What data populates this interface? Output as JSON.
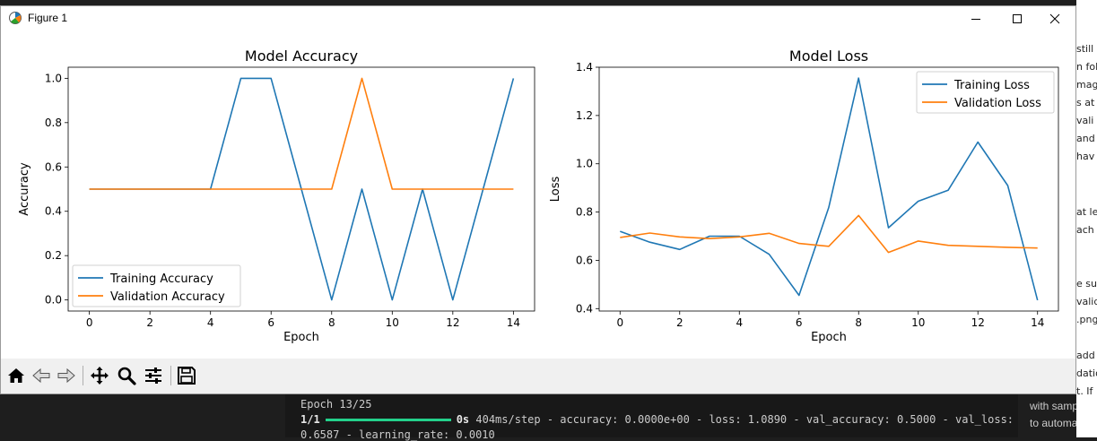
{
  "window": {
    "title": "Figure 1",
    "controls": [
      "minimize",
      "maximize",
      "close"
    ]
  },
  "toolbar": {
    "buttons": [
      {
        "name": "home-icon",
        "label": "Home"
      },
      {
        "name": "back-icon",
        "label": "Back"
      },
      {
        "name": "forward-icon",
        "label": "Forward"
      },
      {
        "name": "pan-icon",
        "label": "Pan"
      },
      {
        "name": "zoom-icon",
        "label": "Zoom"
      },
      {
        "name": "configure-subplots-icon",
        "label": "Configure subplots"
      },
      {
        "name": "save-icon",
        "label": "Save"
      }
    ]
  },
  "terminal": {
    "epoch_line": "Epoch 13/25",
    "step_label": "1/1",
    "progress": 1.0,
    "progress_color": "#23d18b",
    "time": "0s",
    "metrics": "404ms/step - accuracy: 0.0000e+00 - loss: 1.0890 - val_accuracy: 0.5000 - val_loss:",
    "metrics_cont": " 0.6587 - learning_rate: 0.0010"
  },
  "side_panel": {
    "lines": [
      "with sample i",
      "to automate"
    ]
  },
  "right_partial": {
    "lines": [
      "still",
      "n fol",
      "mag",
      "s at",
      "vali",
      "and",
      "hav",
      "at le",
      "ach",
      "e su",
      "valid",
      ".png",
      "add",
      "datio",
      "t. If"
    ]
  },
  "chart_data": [
    {
      "type": "line",
      "title": "Model Accuracy",
      "xlabel": "Epoch",
      "ylabel": "Accuracy",
      "x": [
        0,
        1,
        2,
        3,
        4,
        5,
        6,
        7,
        8,
        9,
        10,
        11,
        12,
        13,
        14
      ],
      "xticks": [
        0,
        2,
        4,
        6,
        8,
        10,
        12,
        14
      ],
      "yticks": [
        0.0,
        0.2,
        0.4,
        0.6,
        0.8,
        1.0
      ],
      "ytick_labels": [
        "0.0",
        "0.2",
        "0.4",
        "0.6",
        "0.8",
        "1.0"
      ],
      "xlim": [
        -0.7,
        14.7
      ],
      "ylim": [
        -0.05,
        1.05
      ],
      "grid": false,
      "legend": "lower left",
      "series": [
        {
          "name": "Training Accuracy",
          "color": "#1f77b4",
          "values": [
            0.5,
            0.5,
            0.5,
            0.5,
            0.5,
            1.0,
            1.0,
            0.5,
            0.0,
            0.5,
            0.0,
            0.5,
            0.0,
            0.5,
            1.0
          ]
        },
        {
          "name": "Validation Accuracy",
          "color": "#ff7f0e",
          "values": [
            0.5,
            0.5,
            0.5,
            0.5,
            0.5,
            0.5,
            0.5,
            0.5,
            0.5,
            1.0,
            0.5,
            0.5,
            0.5,
            0.5,
            0.5
          ]
        }
      ]
    },
    {
      "type": "line",
      "title": "Model Loss",
      "xlabel": "Epoch",
      "ylabel": "Loss",
      "x": [
        0,
        1,
        2,
        3,
        4,
        5,
        6,
        7,
        8,
        9,
        10,
        11,
        12,
        13,
        14
      ],
      "xticks": [
        0,
        2,
        4,
        6,
        8,
        10,
        12,
        14
      ],
      "yticks": [
        0.4,
        0.6,
        0.8,
        1.0,
        1.2,
        1.4
      ],
      "ytick_labels": [
        "0.4",
        "0.6",
        "0.8",
        "1.0",
        "1.2",
        "1.4"
      ],
      "xlim": [
        -0.7,
        14.7
      ],
      "ylim": [
        0.39,
        1.4
      ],
      "grid": false,
      "legend": "upper right",
      "series": [
        {
          "name": "Training Loss",
          "color": "#1f77b4",
          "values": [
            0.72,
            0.675,
            0.645,
            0.7,
            0.7,
            0.625,
            0.455,
            0.82,
            1.355,
            0.735,
            0.845,
            0.89,
            1.09,
            0.91,
            0.435
          ]
        },
        {
          "name": "Validation Loss",
          "color": "#ff7f0e",
          "values": [
            0.695,
            0.713,
            0.697,
            0.69,
            0.697,
            0.712,
            0.67,
            0.658,
            0.786,
            0.633,
            0.68,
            0.662,
            0.658,
            0.654,
            0.651
          ]
        }
      ]
    }
  ]
}
